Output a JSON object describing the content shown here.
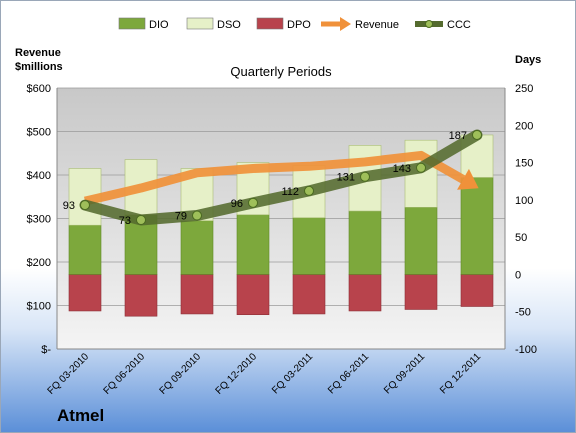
{
  "company": "Atmel",
  "chart_data": {
    "type": "bar",
    "title": "Quarterly Periods",
    "ylabel_left": "Revenue\n$millions",
    "ylabel_right": "Days",
    "categories": [
      "FQ 03-2010",
      "FQ 06-2010",
      "FQ 09-2010",
      "FQ 12-2010",
      "FQ 03-2011",
      "FQ 06-2011",
      "FQ 09-2011",
      "FQ 12-2011"
    ],
    "left_axis": {
      "min": 0,
      "max": 600,
      "ticks": [
        "$-",
        "$100",
        "$200",
        "$300",
        "$400",
        "$500",
        "$600"
      ]
    },
    "right_axis": {
      "min": -100,
      "max": 250,
      "ticks": [
        "-100",
        "-50",
        "0",
        "50",
        "100",
        "150",
        "200",
        "250"
      ]
    },
    "legend_position": "top",
    "grid": true,
    "colors": {
      "dio": "#7da83c",
      "dso": "#e6f0c8",
      "dpo": "#b8434c",
      "revenue": "#f0913a",
      "ccc": "#556b2f"
    },
    "series": [
      {
        "name": "DIO",
        "axis": "right",
        "values": [
          66,
          80,
          72,
          80,
          76,
          85,
          90,
          130
        ]
      },
      {
        "name": "DSO",
        "axis": "right",
        "values": [
          76,
          74,
          70,
          70,
          70,
          88,
          90,
          57
        ]
      },
      {
        "name": "DPO",
        "axis": "right",
        "values": [
          -49,
          -56,
          -53,
          -54,
          -53,
          -49,
          -47,
          -43
        ]
      },
      {
        "name": "Revenue",
        "axis": "left",
        "values": [
          340,
          370,
          405,
          415,
          420,
          430,
          445,
          390
        ]
      },
      {
        "name": "CCC",
        "axis": "right",
        "values": [
          93,
          73,
          79,
          96,
          112,
          131,
          143,
          187
        ]
      }
    ],
    "data_labels": [
      "93",
      "73",
      "79",
      "96",
      "112",
      "131",
      "143",
      "187"
    ]
  }
}
